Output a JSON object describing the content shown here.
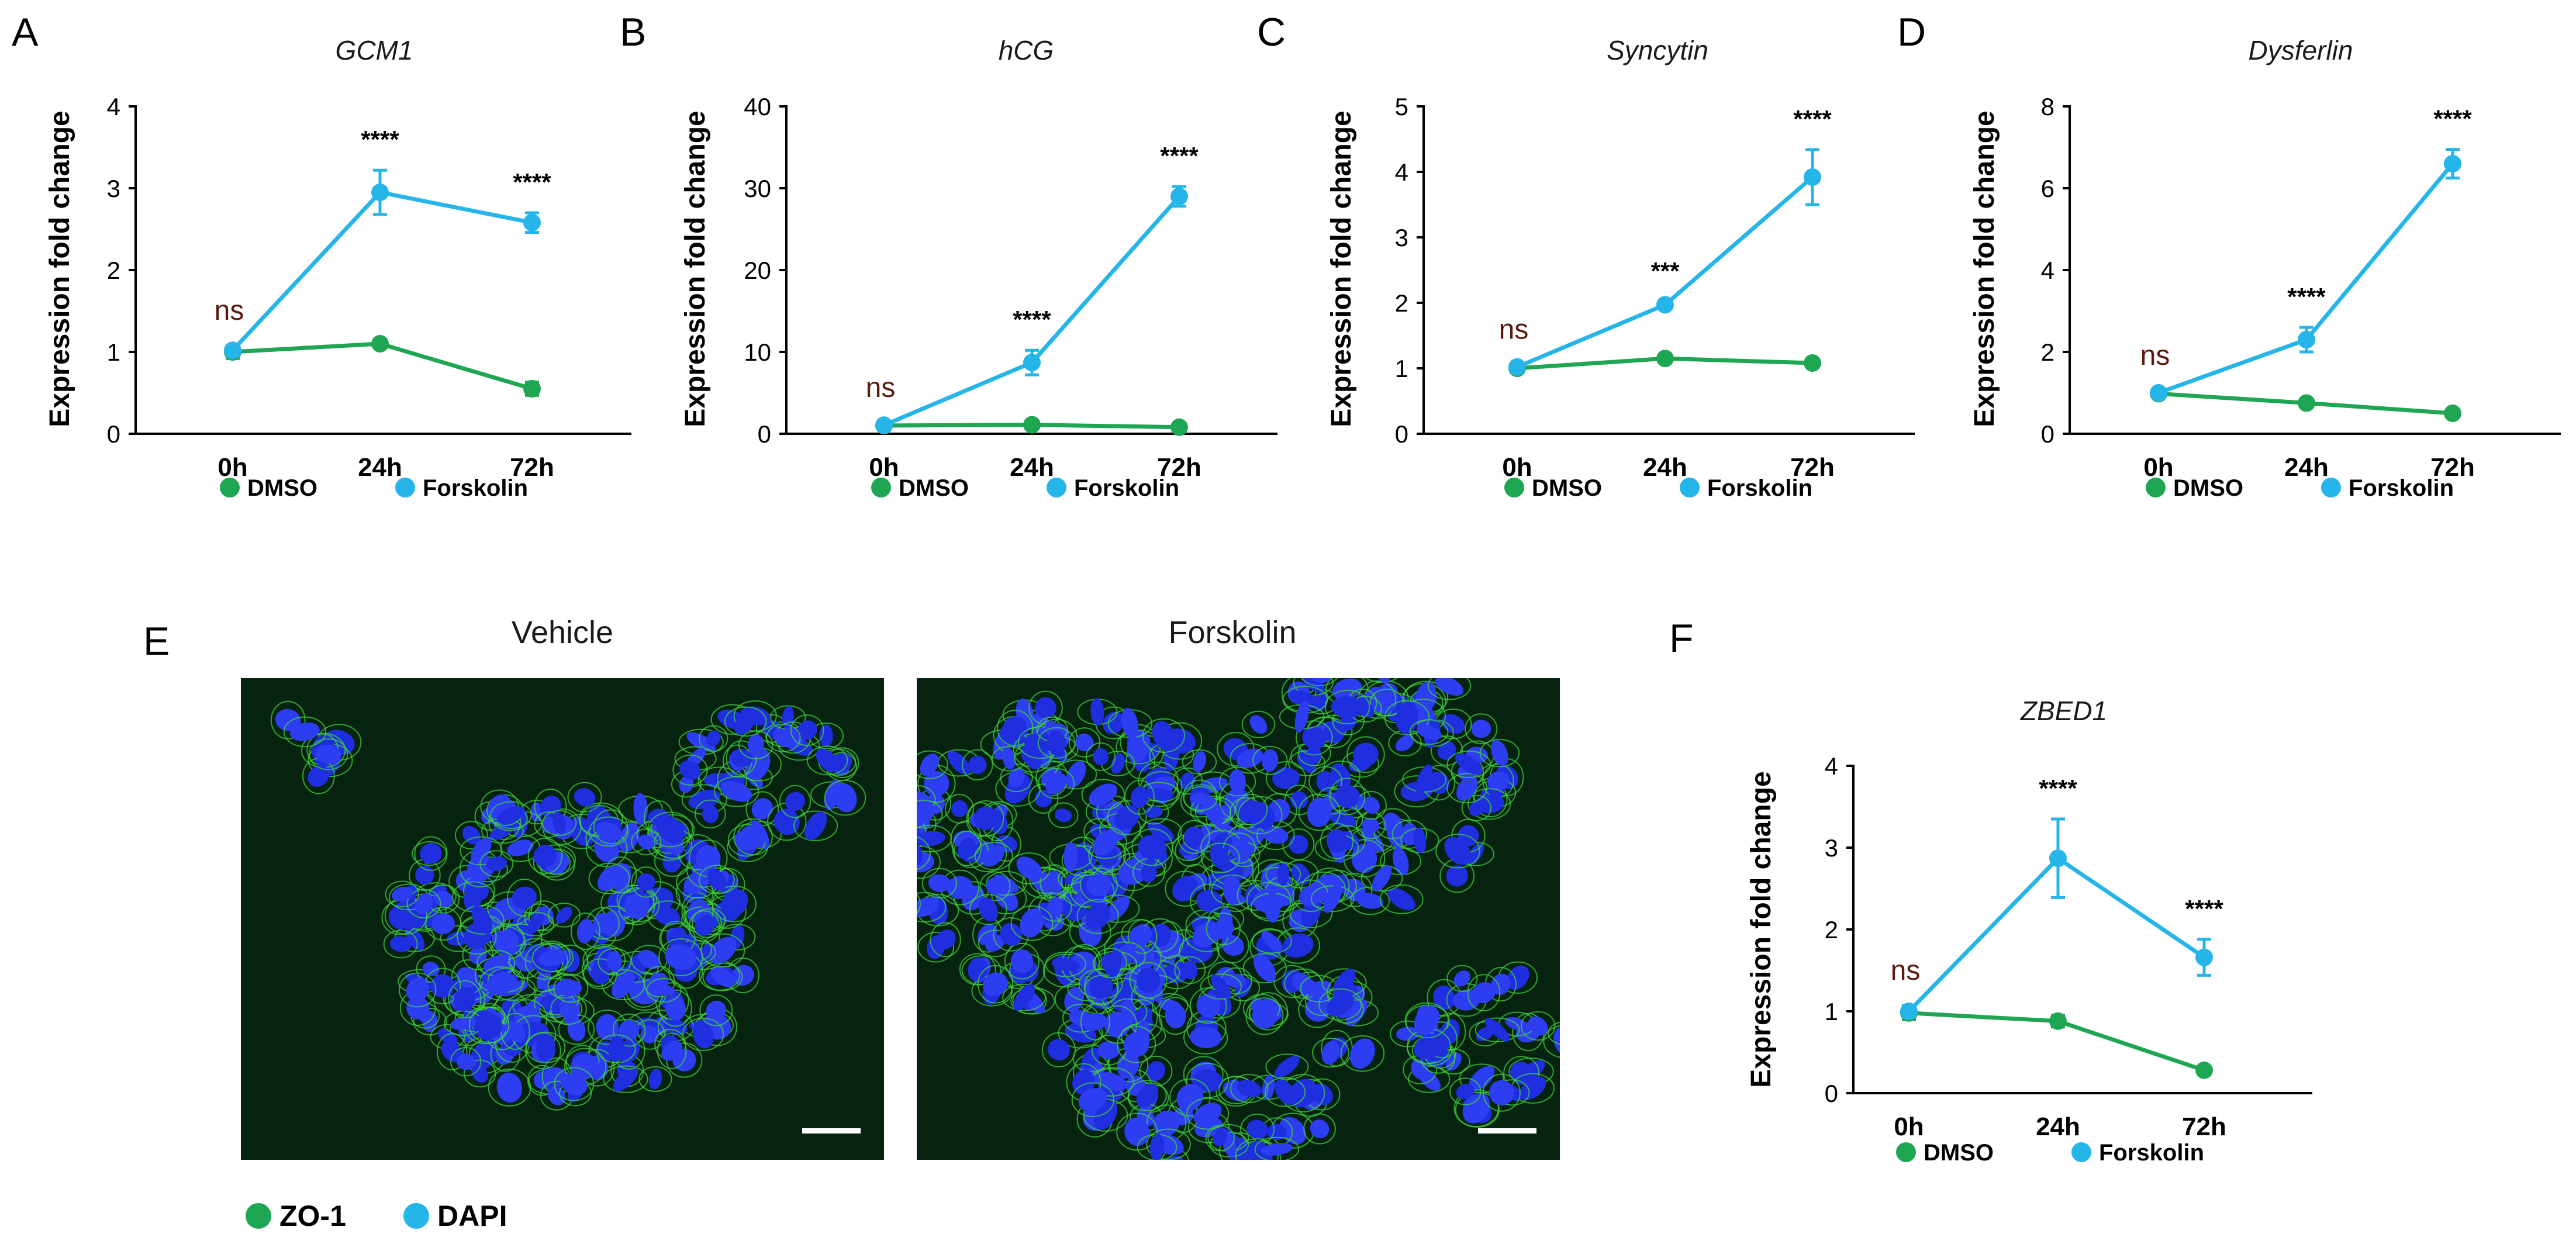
{
  "colors": {
    "dmso": "#1ea653",
    "forskolin": "#25b5e8",
    "zo1": "#1ea653",
    "dapi": "#25b5e8",
    "ns_text": "#5a1a0e",
    "axis": "#000000"
  },
  "legend_series": [
    "DMSO",
    "Forskolin"
  ],
  "panel_letters": [
    "A",
    "B",
    "C",
    "D",
    "E",
    "F"
  ],
  "chart_data": [
    {
      "panel": "A",
      "type": "line",
      "title": "GCM1",
      "ylabel": "Expression fold change",
      "xlabel": "",
      "categories": [
        "0h",
        "24h",
        "72h"
      ],
      "ylim": [
        0,
        4
      ],
      "yticks": [
        "0",
        "1",
        "2",
        "3",
        "4"
      ],
      "series": [
        {
          "name": "DMSO",
          "values": [
            1.0,
            1.1,
            0.55
          ],
          "errors": [
            0.08,
            0.04,
            0.08
          ]
        },
        {
          "name": "Forskolin",
          "values": [
            1.02,
            2.95,
            2.58
          ],
          "errors": [
            0.06,
            0.27,
            0.12
          ]
        }
      ],
      "annotations": [
        "ns",
        "****",
        "****"
      ]
    },
    {
      "panel": "B",
      "type": "line",
      "title": "hCG",
      "ylabel": "Expression fold change",
      "xlabel": "",
      "categories": [
        "0h",
        "24h",
        "72h"
      ],
      "ylim": [
        0,
        40
      ],
      "yticks": [
        "0",
        "10",
        "20",
        "30",
        "40"
      ],
      "series": [
        {
          "name": "DMSO",
          "values": [
            1.0,
            1.1,
            0.8
          ],
          "errors": [
            0.3,
            0.2,
            0.2
          ]
        },
        {
          "name": "Forskolin",
          "values": [
            1.05,
            8.7,
            29.0
          ],
          "errors": [
            0.3,
            1.5,
            1.2
          ]
        }
      ],
      "annotations": [
        "ns",
        "****",
        "****"
      ]
    },
    {
      "panel": "C",
      "type": "line",
      "title": "Syncytin",
      "ylabel": "Expression fold change",
      "xlabel": "",
      "categories": [
        "0h",
        "24h",
        "72h"
      ],
      "ylim": [
        0,
        5
      ],
      "yticks": [
        "0",
        "1",
        "2",
        "3",
        "4",
        "5"
      ],
      "series": [
        {
          "name": "DMSO",
          "values": [
            1.0,
            1.15,
            1.08
          ],
          "errors": [
            0.05,
            0.05,
            0.05
          ]
        },
        {
          "name": "Forskolin",
          "values": [
            1.02,
            1.97,
            3.92
          ],
          "errors": [
            0.04,
            0.05,
            0.42
          ]
        }
      ],
      "annotations": [
        "ns",
        "***",
        "****"
      ]
    },
    {
      "panel": "D",
      "type": "line",
      "title": "Dysferlin",
      "ylabel": "Expression fold change",
      "xlabel": "",
      "categories": [
        "0h",
        "24h",
        "72h"
      ],
      "ylim": [
        0,
        8
      ],
      "yticks": [
        "0",
        "2",
        "4",
        "6",
        "8"
      ],
      "series": [
        {
          "name": "DMSO",
          "values": [
            0.98,
            0.75,
            0.5
          ],
          "errors": [
            0.06,
            0.06,
            0.06
          ]
        },
        {
          "name": "Forskolin",
          "values": [
            1.0,
            2.3,
            6.6
          ],
          "errors": [
            0.06,
            0.3,
            0.35
          ]
        }
      ],
      "annotations": [
        "ns",
        "****",
        "****"
      ]
    },
    {
      "panel": "F",
      "type": "line",
      "title": "ZBED1",
      "ylabel": "Expression fold change",
      "xlabel": "",
      "categories": [
        "0h",
        "24h",
        "72h"
      ],
      "ylim": [
        0,
        4
      ],
      "yticks": [
        "0",
        "1",
        "2",
        "3",
        "4"
      ],
      "series": [
        {
          "name": "DMSO",
          "values": [
            0.98,
            0.88,
            0.28
          ],
          "errors": [
            0.08,
            0.07,
            0.04
          ]
        },
        {
          "name": "Forskolin",
          "values": [
            1.0,
            2.87,
            1.66
          ],
          "errors": [
            0.07,
            0.48,
            0.22
          ]
        }
      ],
      "annotations": [
        "ns",
        "****",
        "****"
      ]
    }
  ],
  "microscopy": {
    "panel": "E",
    "images": [
      {
        "label": "Vehicle"
      },
      {
        "label": "Forskolin"
      }
    ],
    "legend": [
      "ZO-1",
      "DAPI"
    ]
  }
}
